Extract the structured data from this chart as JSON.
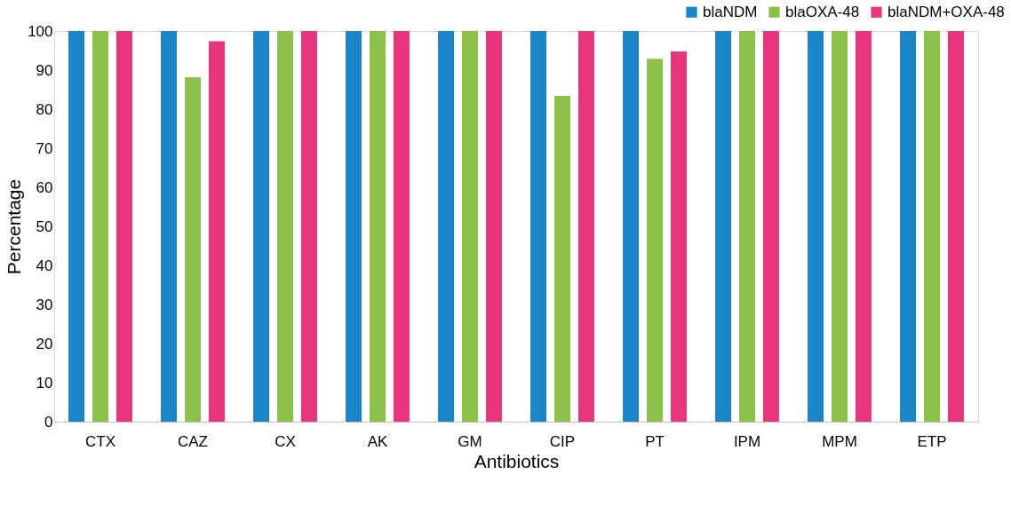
{
  "chart_data": {
    "type": "bar",
    "xlabel": "Antibiotics",
    "ylabel": "Percentage",
    "categories": [
      "CTX",
      "CAZ",
      "CX",
      "AK",
      "GM",
      "CIP",
      "PT",
      "IPM",
      "MPM",
      "ETP"
    ],
    "series": [
      {
        "name": "blaNDM",
        "color": "#1a86c8",
        "values": [
          100,
          100,
          100,
          100,
          100,
          100,
          100,
          100,
          100,
          100
        ]
      },
      {
        "name": "blaOXA-48",
        "color": "#8cc04b",
        "values": [
          100,
          88.2,
          100,
          100,
          100,
          83.4,
          92.9,
          100,
          100,
          100
        ]
      },
      {
        "name": "blaNDM+OXA-48",
        "color": "#e8347c",
        "values": [
          100,
          97.4,
          100,
          100,
          100,
          100,
          94.8,
          100,
          100,
          100
        ]
      }
    ],
    "ylim": [
      0,
      100
    ],
    "yticks": [
      0,
      10,
      20,
      30,
      40,
      50,
      60,
      70,
      80,
      90,
      100
    ],
    "grid": false,
    "legend": "top right"
  }
}
